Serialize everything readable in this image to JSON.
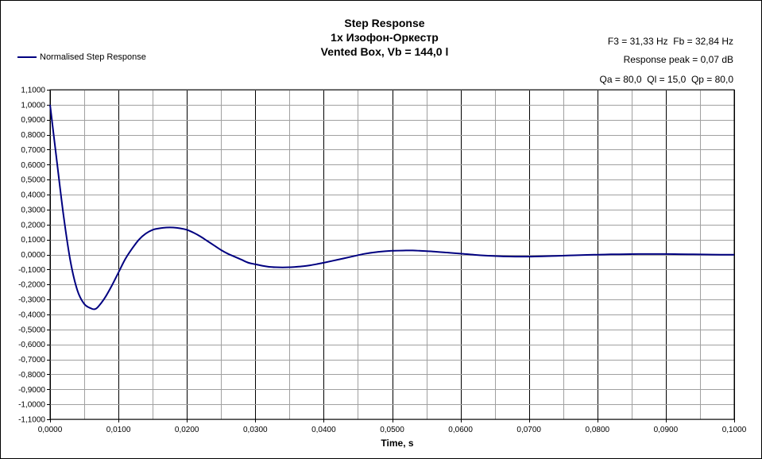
{
  "chart_data": {
    "type": "line",
    "title": [
      "Step Response",
      "1x Изофон-Оркестр",
      "Vented Box, Vb = 144,0 l"
    ],
    "info": [
      "F3 = 31,33 Hz  Fb = 32,84 Hz",
      "Response peak = 0,07 dB",
      "Qa = 80,0  Ql = 15,0  Qp = 80,0"
    ],
    "xlabel": "Time, s",
    "ylabel": "",
    "xlim": [
      0,
      0.1
    ],
    "ylim": [
      -1.1,
      1.1
    ],
    "x_ticks": [
      "0,0000",
      "0,0100",
      "0,0200",
      "0,0300",
      "0,0400",
      "0,0500",
      "0,0600",
      "0,0700",
      "0,0800",
      "0,0900",
      "0,1000"
    ],
    "y_ticks": [
      "1,1000",
      "1,0000",
      "0,9000",
      "0,8000",
      "0,7000",
      "0,6000",
      "0,5000",
      "0,4000",
      "0,3000",
      "0,2000",
      "0,1000",
      "0,0000",
      "-0,1000",
      "-0,2000",
      "-0,3000",
      "-0,4000",
      "-0,5000",
      "-0,6000",
      "-0,7000",
      "-0,8000",
      "-0,9000",
      "-1,0000",
      "-1,1000"
    ],
    "grid": true,
    "legend_position": "top-left",
    "color": "#000080",
    "series": [
      {
        "name": "Normalised Step Response",
        "x": [
          0,
          0.001,
          0.002,
          0.003,
          0.004,
          0.005,
          0.006,
          0.0065,
          0.007,
          0.008,
          0.009,
          0.01,
          0.011,
          0.012,
          0.013,
          0.014,
          0.015,
          0.016,
          0.017,
          0.018,
          0.019,
          0.02,
          0.021,
          0.022,
          0.023,
          0.024,
          0.025,
          0.026,
          0.027,
          0.028,
          0.029,
          0.03,
          0.031,
          0.032,
          0.033,
          0.034,
          0.035,
          0.036,
          0.037,
          0.038,
          0.039,
          0.04,
          0.042,
          0.044,
          0.046,
          0.048,
          0.05,
          0.052,
          0.053,
          0.054,
          0.056,
          0.058,
          0.06,
          0.062,
          0.064,
          0.066,
          0.068,
          0.07,
          0.072,
          0.074,
          0.076,
          0.078,
          0.08,
          0.082,
          0.084,
          0.086,
          0.088,
          0.09,
          0.092,
          0.094,
          0.096,
          0.098,
          0.1
        ],
        "y": [
          1.0,
          0.62,
          0.25,
          -0.05,
          -0.24,
          -0.33,
          -0.36,
          -0.365,
          -0.35,
          -0.29,
          -0.21,
          -0.12,
          -0.03,
          0.04,
          0.1,
          0.14,
          0.165,
          0.175,
          0.18,
          0.18,
          0.175,
          0.165,
          0.145,
          0.12,
          0.09,
          0.06,
          0.03,
          0.005,
          -0.015,
          -0.035,
          -0.055,
          -0.065,
          -0.075,
          -0.082,
          -0.085,
          -0.086,
          -0.085,
          -0.082,
          -0.078,
          -0.072,
          -0.064,
          -0.055,
          -0.035,
          -0.015,
          0.005,
          0.018,
          0.025,
          0.027,
          0.027,
          0.025,
          0.02,
          0.013,
          0.006,
          -0.002,
          -0.008,
          -0.012,
          -0.014,
          -0.014,
          -0.012,
          -0.009,
          -0.006,
          -0.003,
          -0.001,
          0.001,
          0.002,
          0.003,
          0.003,
          0.003,
          0.002,
          0.001,
          0.0,
          -0.001,
          -0.001
        ]
      }
    ]
  }
}
